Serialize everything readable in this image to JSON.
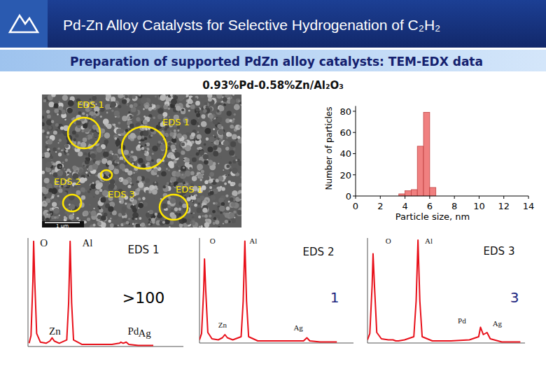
{
  "header": {
    "title": "Pd-Zn Alloy Catalysts for Selective Hydrogenation of C₂H₂",
    "subtitle": "Preparation of supported PdZn alloy catalysts: TEM-EDX data",
    "sample": "0.93%Pd-0.58%Zn/Al₂O₃"
  },
  "tem_image": {
    "regions": [
      "EDS 1",
      "EDS 1",
      "EDS 2",
      "EDS 3",
      "EDS 1"
    ],
    "scale_bar": "1 µm"
  },
  "chart_data": [
    {
      "type": "histogram",
      "bins": [
        3.5,
        4,
        4.5,
        5,
        5.5,
        6,
        6.5
      ],
      "values": [
        2,
        5,
        6,
        47,
        79,
        8
      ],
      "color": "#f08080",
      "xlim": [
        0,
        14
      ],
      "ylim": [
        0,
        85
      ],
      "xticks": [
        0,
        2,
        4,
        6,
        8,
        10,
        12,
        14
      ],
      "yticks": [
        0,
        20,
        40,
        60,
        80
      ],
      "x_label": "Particle size, nm",
      "y_label": "Number of particles"
    },
    {
      "type": "line",
      "title": "EDS 1",
      "count_label": ">100",
      "color": "#e8101a",
      "x": [
        0.4,
        0.45,
        0.5,
        0.52,
        0.55,
        0.6,
        0.7,
        0.85,
        0.95,
        1.01,
        1.07,
        1.2,
        1.4,
        1.45,
        1.49,
        1.53,
        1.58,
        1.8,
        2.2,
        2.6,
        2.8,
        2.84,
        2.9,
        2.98,
        3.05,
        3.3,
        3.7
      ],
      "values": [
        3,
        10,
        60,
        97,
        60,
        12,
        4,
        3,
        5,
        8,
        5,
        3,
        6,
        40,
        97,
        40,
        6,
        2,
        2,
        2,
        3,
        4,
        3,
        4,
        2,
        1,
        1
      ],
      "xlim": [
        0.37,
        4.5
      ],
      "ylim": [
        0,
        100
      ],
      "tick_labels": false,
      "annotations": [
        {
          "text": "O",
          "x": 0.69,
          "y": 92
        },
        {
          "text": "Al",
          "x": 1.81,
          "y": 92
        },
        {
          "text": "Zn",
          "x": 0.93,
          "y": 11
        },
        {
          "text": "Pd",
          "x": 3.02,
          "y": 11
        },
        {
          "text": "Ag",
          "x": 3.3,
          "y": 9
        }
      ]
    },
    {
      "type": "line",
      "title": "EDS 2",
      "count_label": "1",
      "color": "#e8101a",
      "x": [
        0.4,
        0.45,
        0.5,
        0.52,
        0.55,
        0.6,
        0.7,
        0.85,
        0.95,
        1.01,
        1.07,
        1.2,
        1.4,
        1.45,
        1.49,
        1.53,
        1.58,
        1.8,
        2.2,
        2.6,
        2.8,
        2.84,
        2.9,
        2.98,
        3.05,
        3.3,
        3.7
      ],
      "values": [
        3,
        9,
        50,
        80,
        50,
        10,
        4,
        3,
        5,
        8,
        5,
        3,
        6,
        40,
        97,
        40,
        6,
        2,
        2,
        2,
        2,
        2,
        2,
        5,
        2,
        1,
        1
      ],
      "xlim": [
        0.4,
        4.1
      ],
      "ylim": [
        0,
        100
      ],
      "tick_labels": false,
      "annotations": [
        {
          "text": "O",
          "x": 0.65,
          "y": 95
        },
        {
          "text": "Al",
          "x": 1.6,
          "y": 95
        },
        {
          "text": "Zn",
          "x": 0.85,
          "y": 15
        },
        {
          "text": "Ag",
          "x": 2.66,
          "y": 12
        }
      ]
    },
    {
      "type": "line",
      "title": "EDS 3",
      "count_label": "3",
      "color": "#e8101a",
      "x": [
        0.4,
        0.45,
        0.5,
        0.52,
        0.55,
        0.6,
        0.7,
        0.85,
        0.95,
        1.01,
        1.07,
        1.2,
        1.4,
        1.45,
        1.49,
        1.53,
        1.58,
        1.8,
        2.2,
        2.6,
        2.8,
        2.84,
        2.9,
        2.98,
        3.05,
        3.3,
        3.7
      ],
      "values": [
        3,
        9,
        55,
        85,
        55,
        10,
        4,
        3,
        3,
        2,
        2,
        3,
        6,
        40,
        98,
        40,
        6,
        2,
        2,
        3,
        6,
        15,
        8,
        10,
        4,
        1,
        1
      ],
      "xlim": [
        0.4,
        3.8
      ],
      "ylim": [
        0,
        100
      ],
      "tick_labels": false,
      "annotations": [
        {
          "text": "O",
          "x": 0.79,
          "y": 95
        },
        {
          "text": "Al",
          "x": 1.64,
          "y": 95
        },
        {
          "text": "Pd",
          "x": 2.35,
          "y": 19
        },
        {
          "text": "Ag",
          "x": 3.1,
          "y": 16
        }
      ]
    }
  ]
}
